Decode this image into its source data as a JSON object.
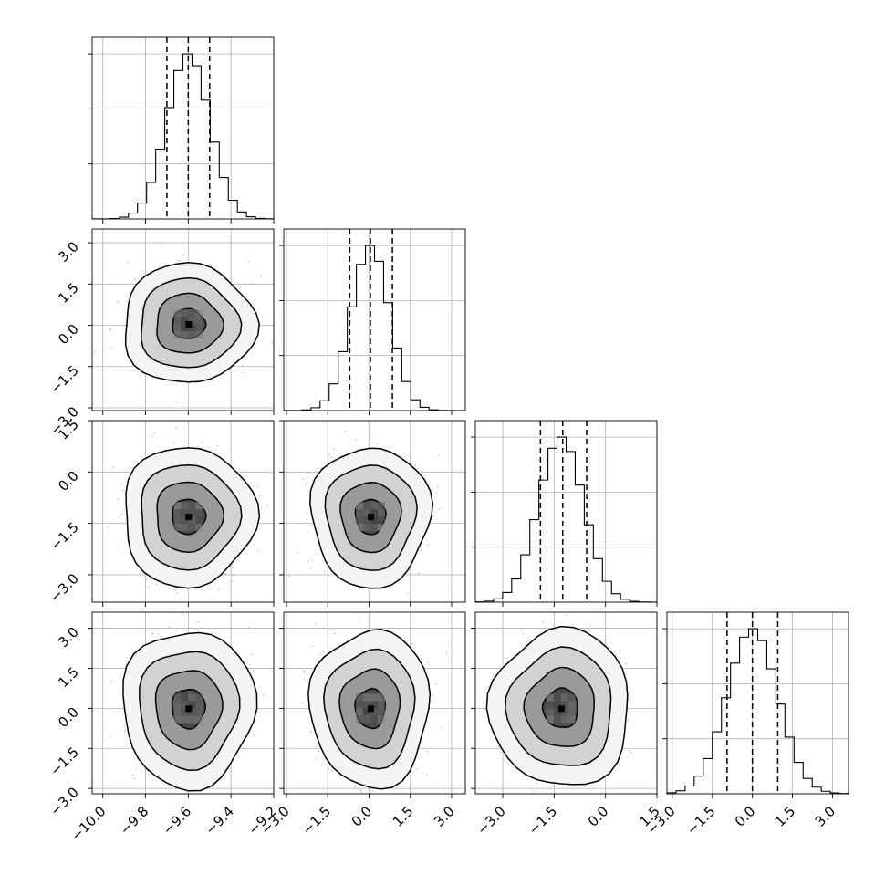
{
  "chart_data": {
    "type": "corner",
    "n_params": 4,
    "grid": true,
    "colors": {
      "line": "#000000",
      "grid": "#b0b0b0",
      "points": "#8c8c8c",
      "fill_light": "#f4f4f4",
      "fill_mid": "#d2d2d2",
      "fill_dark": "#9a9a9a",
      "fill_darkest": "#4a4a4a"
    },
    "params": [
      {
        "range": [
          -10.05,
          -9.2
        ],
        "ticks": [
          -10.0,
          -9.8,
          -9.6,
          -9.4,
          -9.2
        ],
        "tick_labels": [
          "−10.0",
          "−9.8",
          "−9.6",
          "−9.4",
          "−9.2"
        ],
        "mean": -9.6,
        "sd": 0.1,
        "quantiles": [
          -9.7,
          -9.6,
          -9.5
        ]
      },
      {
        "range": [
          -3.1,
          3.5
        ],
        "ticks": [
          -3.0,
          -1.5,
          0.0,
          1.5,
          3.0
        ],
        "tick_labels": [
          "−3.0",
          "−1.5",
          "0.0",
          "1.5",
          "3.0"
        ],
        "mean": 0.05,
        "sd": 0.7,
        "quantiles": [
          -0.7,
          0.05,
          0.85
        ]
      },
      {
        "range": [
          -3.8,
          1.5
        ],
        "ticks": [
          -3.0,
          -1.5,
          0.0,
          1.5
        ],
        "tick_labels": [
          "−3.0",
          "−1.5",
          "0.0",
          "1.5"
        ],
        "mean": -1.3,
        "sd": 0.66,
        "quantiles": [
          -1.9,
          -1.25,
          -0.55
        ]
      },
      {
        "range": [
          -3.2,
          3.6
        ],
        "ticks": [
          -3.0,
          -1.5,
          0.0,
          1.5,
          3.0
        ],
        "tick_labels": [
          "−3.0",
          "−1.5",
          "0.0",
          "1.5",
          "3.0"
        ],
        "mean": 0.0,
        "sd": 0.95,
        "quantiles": [
          -0.95,
          0.0,
          0.95
        ]
      }
    ],
    "contour_sigma_levels": [
      0.5,
      1.0,
      1.5,
      2.0
    ],
    "hist_bins": 20
  }
}
